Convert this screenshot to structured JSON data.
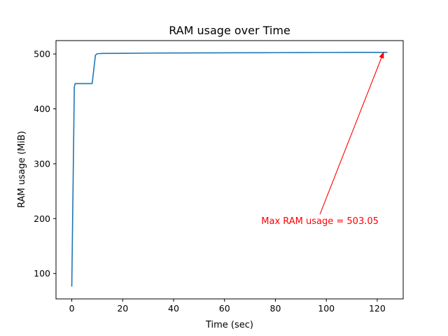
{
  "chart_data": {
    "type": "line",
    "title": "RAM usage over Time",
    "xlabel": "Time (sec)",
    "ylabel": "RAM usage (MiB)",
    "xlim": [
      -6.2,
      130.2
    ],
    "ylim": [
      53.7,
      524.4
    ],
    "xticks": [
      0,
      20,
      40,
      60,
      80,
      100,
      120
    ],
    "yticks": [
      100,
      200,
      300,
      400,
      500
    ],
    "grid": false,
    "legend": "none",
    "series": [
      {
        "color": "#1f77b4",
        "x": [
          0,
          1,
          1.3,
          8,
          9.3,
          10,
          12,
          20,
          30,
          40,
          50,
          60,
          70,
          80,
          90,
          100,
          110,
          120,
          124
        ],
        "y": [
          76,
          440,
          446,
          446,
          498,
          500.5,
          501,
          501.2,
          501.6,
          501.8,
          502,
          502.1,
          502.3,
          502.4,
          502.6,
          502.7,
          502.9,
          503.0,
          503.05
        ]
      }
    ],
    "annotations": [
      {
        "text": "Max RAM usage = 503.05",
        "color": "#ff0000",
        "point": [
          122.5,
          503.05
        ],
        "text_anchor": [
          97.5,
          208
        ]
      }
    ]
  }
}
